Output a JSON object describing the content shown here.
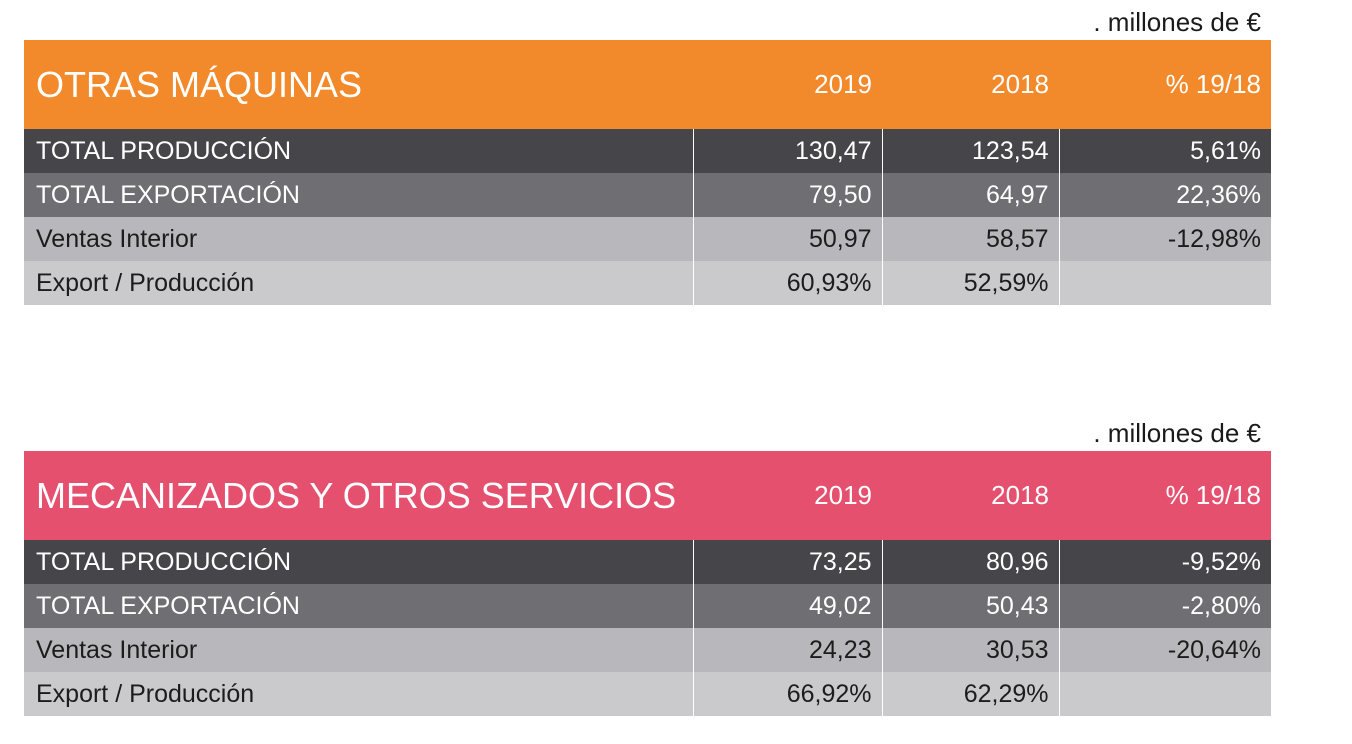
{
  "tables": [
    {
      "unit": ". millones de €",
      "title": "OTRAS MÁQUINAS",
      "headers": {
        "y2019": "2019",
        "y2018": "2018",
        "pct": "% 19/18"
      },
      "accent_color": "#f28a2b",
      "rows": [
        {
          "label": "TOTAL PRODUCCIÓN",
          "y2019": "130,47",
          "y2018": "123,54",
          "pct": "5,61%"
        },
        {
          "label": "TOTAL EXPORTACIÓN",
          "y2019": "79,50",
          "y2018": "64,97",
          "pct": "22,36%"
        },
        {
          "label": "Ventas Interior",
          "y2019": "50,97",
          "y2018": "58,57",
          "pct": "-12,98%"
        },
        {
          "label": "Export / Producción",
          "y2019": "60,93%",
          "y2018": "52,59%",
          "pct": ""
        }
      ]
    },
    {
      "unit": ". millones de €",
      "title": "MECANIZADOS Y OTROS SERVICIOS",
      "headers": {
        "y2019": "2019",
        "y2018": "2018",
        "pct": "% 19/18"
      },
      "accent_color": "#e5506f",
      "rows": [
        {
          "label": "TOTAL PRODUCCIÓN",
          "y2019": "73,25",
          "y2018": "80,96",
          "pct": "-9,52%"
        },
        {
          "label": "TOTAL EXPORTACIÓN",
          "y2019": "49,02",
          "y2018": "50,43",
          "pct": "-2,80%"
        },
        {
          "label": "Ventas Interior",
          "y2019": "24,23",
          "y2018": "30,53",
          "pct": "-20,64%"
        },
        {
          "label": "Export / Producción",
          "y2019": "66,92%",
          "y2018": "62,29%",
          "pct": ""
        }
      ]
    }
  ]
}
